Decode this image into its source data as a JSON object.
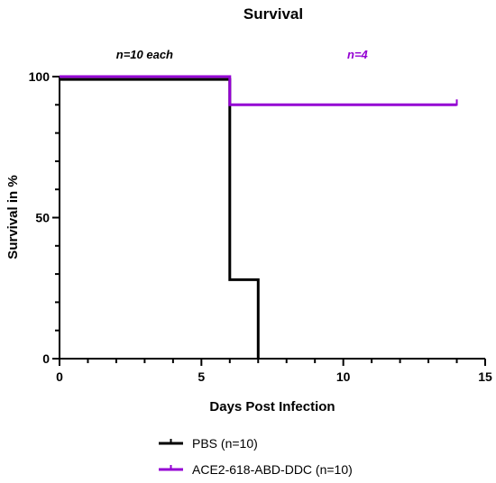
{
  "chart_data": {
    "type": "line",
    "title": "Survival",
    "xlabel": "Days Post Infection",
    "ylabel": "Survival in %",
    "xlim": [
      0,
      15
    ],
    "ylim": [
      0,
      100
    ],
    "x_ticks": [
      0,
      5,
      10,
      15
    ],
    "y_ticks": [
      0,
      50,
      100
    ],
    "grid": false,
    "legend_position": "bottom",
    "step": true,
    "annotations": [
      {
        "text": "n=10 each",
        "x": 3,
        "y": 108,
        "color": "#000000"
      },
      {
        "text": "n=4",
        "x": 10.5,
        "y": 108,
        "color": "#9400D3"
      }
    ],
    "series": [
      {
        "name": "PBS (n=10)",
        "color": "#000000",
        "x": [
          0,
          6,
          6,
          7,
          7
        ],
        "y": [
          99,
          99,
          28,
          28,
          0
        ]
      },
      {
        "name": "ACE2-618-ABD-DDC (n=10)",
        "color": "#9400D3",
        "x": [
          0,
          6,
          6,
          14
        ],
        "y": [
          100,
          100,
          90,
          90
        ],
        "censored": [
          [
            14,
            90
          ]
        ]
      }
    ]
  }
}
